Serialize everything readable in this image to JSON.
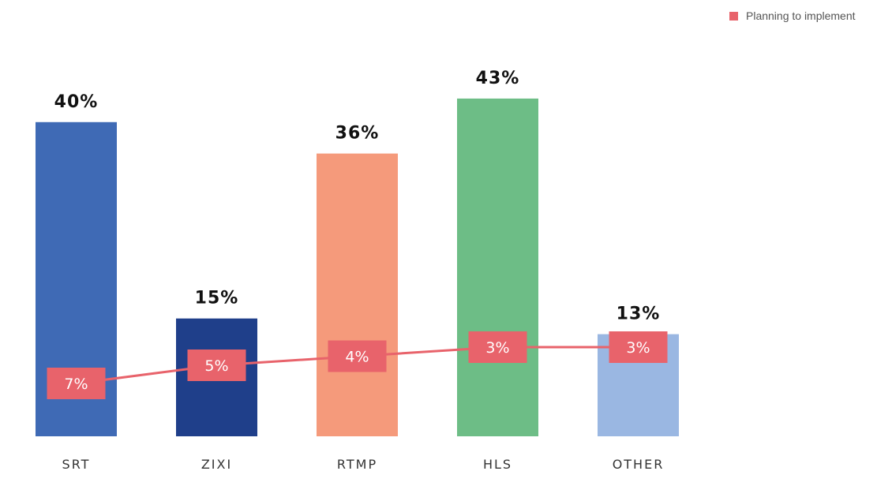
{
  "chart_data": {
    "type": "bar",
    "categories": [
      "SRT",
      "ZIXI",
      "RTMP",
      "HLS",
      "OTHER"
    ],
    "bar_values": [
      40,
      15,
      36,
      43,
      13
    ],
    "bar_labels": [
      "40%",
      "15%",
      "36%",
      "43%",
      "13%"
    ],
    "bar_colors": [
      "#3f6ab5",
      "#1f3f8a",
      "#f59a7b",
      "#6dbd86",
      "#9ab7e2"
    ],
    "line_series": {
      "name": "Planning to implement",
      "type": "line",
      "values": [
        7,
        5,
        4,
        3,
        3
      ],
      "labels": [
        "7%",
        "5%",
        "4%",
        "3%",
        "3%"
      ],
      "color": "#e8636b"
    },
    "ylim": [
      0,
      45
    ],
    "grid": false,
    "legend_position": "top-right"
  }
}
